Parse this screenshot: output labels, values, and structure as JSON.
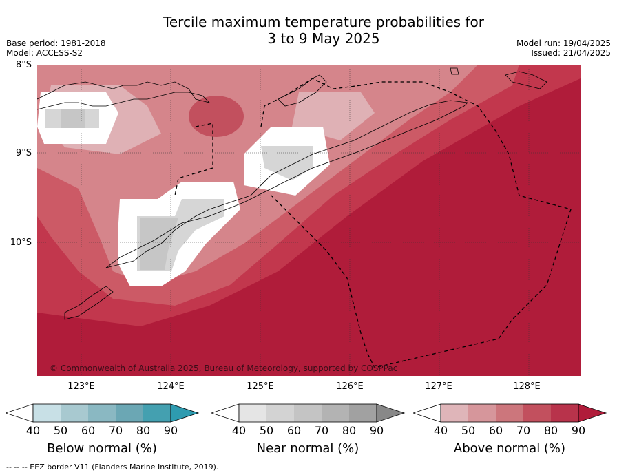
{
  "header": {
    "title_line1": "Tercile maximum temperature probabilities for",
    "title_line2": "3 to 9 May 2025",
    "base_period": "Base period: 1981-2018",
    "model": "Model: ACCESS-S2",
    "model_run": "Model run: 19/04/2025",
    "issued": "Issued: 21/04/2025"
  },
  "map": {
    "copyright": "© Commonwealth of Australia 2025, Bureau of Meteorology, supported by COSPPac",
    "lat_labels": [
      "8°S",
      "9°S",
      "10°S"
    ],
    "lon_labels": [
      "123°E",
      "124°E",
      "125°E",
      "126°E",
      "127°E",
      "128°E"
    ],
    "background_category": "Above normal",
    "colors": {
      "above_90": "#b01c3a",
      "above_80": "#c2374d",
      "above_70": "#cc5a66",
      "above_60": "#d5858b",
      "above_50": "#dfb1b5",
      "neutral": "#ffffff",
      "near_50": "#d6d6d6",
      "near_60": "#c6c6c6"
    }
  },
  "legends": [
    {
      "name": "below",
      "title": "Below normal (%)",
      "ticks": [
        "40",
        "50",
        "60",
        "70",
        "80",
        "90"
      ],
      "colors": [
        "#ffffff",
        "#c8e0e6",
        "#a8c9d0",
        "#8ab8c2",
        "#6ba7b4",
        "#44a0b0",
        "#2e9bb0"
      ]
    },
    {
      "name": "near",
      "title": "Near normal (%)",
      "ticks": [
        "40",
        "50",
        "60",
        "70",
        "80",
        "90"
      ],
      "colors": [
        "#ffffff",
        "#e5e5e5",
        "#d3d3d3",
        "#c4c4c4",
        "#b3b3b3",
        "#a1a1a1",
        "#888888"
      ]
    },
    {
      "name": "above",
      "title": "Above normal (%)",
      "ticks": [
        "40",
        "50",
        "60",
        "70",
        "80",
        "90"
      ],
      "colors": [
        "#ffffff",
        "#dfb5b9",
        "#d6969b",
        "#cc767c",
        "#c2505e",
        "#b8334b",
        "#b01c3a"
      ]
    }
  ],
  "footer": "--  --  -- EEZ border V11 (Flanders Marine Institute, 2019)."
}
